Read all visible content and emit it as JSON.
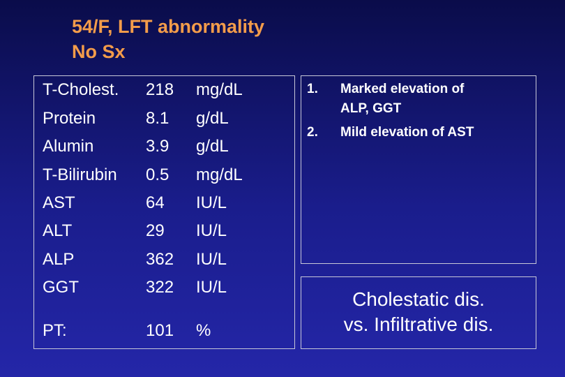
{
  "title": {
    "line1": "54/F, LFT abnormality",
    "line2": "No Sx"
  },
  "labs": [
    {
      "name": "T-Cholest.",
      "value": "218",
      "unit": "mg/dL"
    },
    {
      "name": "Protein",
      "value": "8.1",
      "unit": "g/dL"
    },
    {
      "name": "Alumin",
      "value": "3.9",
      "unit": "g/dL"
    },
    {
      "name": "T-Bilirubin",
      "value": "0.5",
      "unit": "mg/dL"
    },
    {
      "name": "AST",
      "value": "64",
      "unit": "IU/L"
    },
    {
      "name": "ALT",
      "value": "29",
      "unit": "IU/L"
    },
    {
      "name": "ALP",
      "value": "362",
      "unit": "IU/L"
    },
    {
      "name": "GGT",
      "value": "322",
      "unit": "IU/L"
    },
    {
      "name": "PT:",
      "value": "101",
      "unit": "%"
    }
  ],
  "findings": [
    {
      "num": "1.",
      "line1": "Marked elevation of",
      "line2": "ALP, GGT"
    },
    {
      "num": "2.",
      "line1": "Mild elevation of AST"
    }
  ],
  "conclusion": {
    "line1": "Cholestatic dis.",
    "line2": "vs. Infiltrative dis."
  }
}
